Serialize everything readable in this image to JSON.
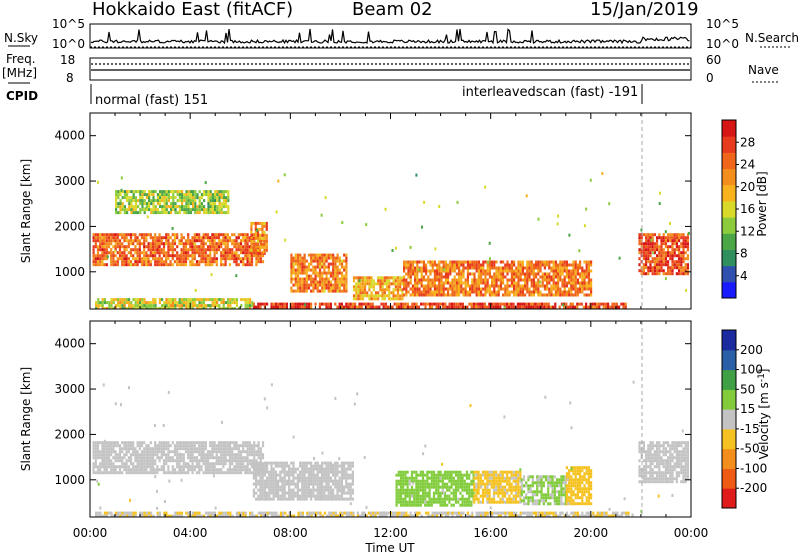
{
  "header": {
    "station": "Hokkaido East (fitACF)",
    "beam": "Beam 02",
    "date": "15/Jan/2019"
  },
  "side_labels": {
    "nsky": "N.Sky",
    "nsearch": "N.Search",
    "freq": "Freq.",
    "freq_unit": "[MHz]",
    "nave": "Nave",
    "cpid": "CPID"
  },
  "noise_panel": {
    "left_ticks": [
      "10^5",
      "10^0"
    ],
    "right_ticks": [
      "10^5",
      "10^0"
    ]
  },
  "freq_panel": {
    "left_ticks": [
      "18",
      "8"
    ],
    "right_ticks": [
      "60",
      "0"
    ]
  },
  "cpid_panel": {
    "mode_1": "normal (fast) 151",
    "mode_2": "interleavedscan (fast) -191"
  },
  "chart_data": [
    {
      "type": "heatmap",
      "title": "",
      "xlabel": "",
      "ylabel": "Slant Range [km]",
      "x_ticks": [
        "00:00",
        "04:00",
        "08:00",
        "12:00",
        "16:00",
        "20:00",
        "00:00"
      ],
      "y_ticks": [
        "1000",
        "2000",
        "3000",
        "4000"
      ],
      "xlim_hours": [
        0,
        24
      ],
      "ylim_km": [
        180,
        4500
      ],
      "colorbar": {
        "label": "Power [dB]",
        "ticks": [
          "4",
          "8",
          "12",
          "16",
          "20",
          "24",
          "28"
        ],
        "range": [
          0,
          30
        ],
        "colors": [
          "#1a1aff",
          "#3050b0",
          "#2f8f5f",
          "#4aa646",
          "#8ccc3c",
          "#d9d92a",
          "#f7b21e",
          "#f38d1b",
          "#ef651a",
          "#e83a1c",
          "#d61515"
        ]
      },
      "regions": [
        {
          "t0": 0.1,
          "t1": 6.9,
          "r0": 1150,
          "r1": 1850,
          "value": 23
        },
        {
          "t0": 6.4,
          "t1": 7.1,
          "r0": 1400,
          "r1": 2100,
          "value": 21
        },
        {
          "t0": 21.9,
          "t1": 23.9,
          "r0": 950,
          "r1": 1850,
          "value": 25
        },
        {
          "t0": 8.0,
          "t1": 10.2,
          "r0": 550,
          "r1": 1400,
          "value": 21
        },
        {
          "t0": 10.5,
          "t1": 12.5,
          "r0": 400,
          "r1": 900,
          "value": 19
        },
        {
          "t0": 12.5,
          "t1": 20.0,
          "r0": 500,
          "r1": 1250,
          "value": 22
        },
        {
          "t0": 6.5,
          "t1": 21.5,
          "r0": 180,
          "r1": 320,
          "value": 26
        },
        {
          "t0": 0.2,
          "t1": 6.5,
          "r0": 180,
          "r1": 420,
          "value": 15
        },
        {
          "t0": 1.0,
          "t1": 5.5,
          "r0": 2300,
          "r1": 2800,
          "value": 13
        }
      ]
    },
    {
      "type": "heatmap",
      "title": "",
      "xlabel": "Time UT",
      "ylabel": "Slant Range [km]",
      "x_ticks": [
        "00:00",
        "04:00",
        "08:00",
        "12:00",
        "16:00",
        "20:00",
        "00:00"
      ],
      "y_ticks": [
        "1000",
        "2000",
        "3000",
        "4000"
      ],
      "xlim_hours": [
        0,
        24
      ],
      "ylim_km": [
        180,
        4500
      ],
      "colorbar": {
        "label": "Velocity [m s^-1]",
        "ticks": [
          "200",
          "100",
          "50",
          "15",
          "-15",
          "-50",
          "-100",
          "-200"
        ],
        "range": [
          -250,
          250
        ],
        "colors": [
          "#e01b1b",
          "#ef5a14",
          "#f38d1b",
          "#f5c221",
          "#c3c3c3",
          "#82cc3c",
          "#3fa046",
          "#2b5fa8",
          "#1c2aa0"
        ]
      },
      "regions": [
        {
          "t0": 0.1,
          "t1": 6.9,
          "r0": 1150,
          "r1": 1850,
          "value": 0
        },
        {
          "t0": 21.9,
          "t1": 23.9,
          "r0": 950,
          "r1": 1850,
          "value": 0
        },
        {
          "t0": 6.5,
          "t1": 10.5,
          "r0": 550,
          "r1": 1400,
          "value": 0
        },
        {
          "t0": 12.2,
          "t1": 15.3,
          "r0": 450,
          "r1": 1200,
          "value": 45
        },
        {
          "t0": 15.3,
          "t1": 17.2,
          "r0": 500,
          "r1": 1200,
          "value": -40
        },
        {
          "t0": 17.2,
          "t1": 19.0,
          "r0": 500,
          "r1": 1100,
          "value": 35
        },
        {
          "t0": 19.0,
          "t1": 20.0,
          "r0": 500,
          "r1": 1300,
          "value": -60
        },
        {
          "t0": 0.2,
          "t1": 21.5,
          "r0": 180,
          "r1": 300,
          "value": -25
        }
      ]
    }
  ]
}
